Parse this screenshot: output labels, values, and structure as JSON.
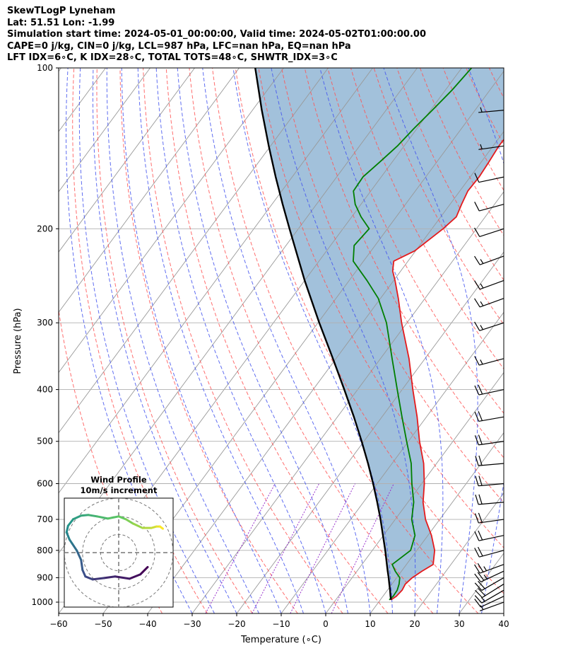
{
  "header": {
    "line1": "SkewTLogP Lyneham",
    "line2": "Lat: 51.51   Lon: -1.99",
    "line3": "Simulation start time: 2024-05-01_00:00:00, Valid time: 2024-05-02T01:00:00.00",
    "line4": "CAPE=0 j/kg, CIN=0 j/kg, LCL=987 hPa, LFC=nan hPa, EQ=nan hPa",
    "line5": "LFT IDX=6∘C, K IDX=28∘C, TOTAL TOTS=48∘C, SHWTR_IDX=3∘C"
  },
  "colors": {
    "temperature": "#e41a1c",
    "dewpoint": "#007f00",
    "parcel": "#000000",
    "cape_fill": "#7ba7cc",
    "dry_adiabat": "#ff5555",
    "moist_adiabat": "#4455ee",
    "mixing_ratio": "#9933cc",
    "isotherm": "#999999",
    "grid": "#b0b0b0"
  },
  "chart_data": [
    {
      "type": "line",
      "subtype": "skew-t-log-p",
      "title": "SkewTLogP Lyneham",
      "xlabel": "Temperature (∘C)",
      "ylabel": "Pressure (hPa)",
      "xlim": [
        -60,
        40
      ],
      "ylim": [
        1050,
        100
      ],
      "x_ticks": [
        "−60",
        "−50",
        "−40",
        "−30",
        "−20",
        "−10",
        "0",
        "10",
        "20",
        "30",
        "40"
      ],
      "x_tick_values": [
        -60,
        -50,
        -40,
        -30,
        -20,
        -10,
        0,
        10,
        20,
        30,
        40
      ],
      "y_ticks": [
        "100",
        "200",
        "300",
        "400",
        "500",
        "600",
        "700",
        "800",
        "900",
        "1000"
      ],
      "y_tick_values": [
        100,
        200,
        300,
        400,
        500,
        600,
        700,
        800,
        900,
        1000
      ],
      "grid": true,
      "series": [
        {
          "name": "Temperature",
          "p": [
            990,
            975,
            950,
            925,
            900,
            875,
            850,
            800,
            750,
            700,
            650,
            600,
            550,
            500,
            450,
            400,
            350,
            300,
            270,
            250,
            240,
            230,
            220,
            200,
            190,
            180,
            170,
            160,
            150,
            140,
            130,
            120,
            110,
            100
          ],
          "t": [
            12.4,
            13.0,
            13.3,
            13.0,
            13.5,
            14.6,
            16.0,
            14.0,
            10.8,
            6.8,
            3.4,
            0.6,
            -2.9,
            -7.5,
            -12.1,
            -17.6,
            -23.6,
            -31.2,
            -36.0,
            -39.7,
            -41.8,
            -43.2,
            -40.2,
            -37.5,
            -36.5,
            -37.4,
            -38.2,
            -38.0,
            -38.3,
            -38.7,
            -38.6,
            -39.1,
            -40.1,
            -41.5
          ]
        },
        {
          "name": "Dewpoint",
          "p": [
            990,
            975,
            950,
            925,
            900,
            875,
            850,
            800,
            750,
            700,
            650,
            600,
            550,
            500,
            450,
            400,
            350,
            300,
            270,
            250,
            230,
            215,
            200,
            190,
            180,
            170,
            160,
            150,
            140,
            130,
            120,
            110,
            100
          ],
          "t": [
            12.0,
            12.3,
            12.2,
            11.6,
            10.7,
            8.6,
            6.8,
            8.6,
            7.1,
            3.7,
            1.3,
            -2.2,
            -5.7,
            -10.4,
            -15.5,
            -21.1,
            -27.4,
            -34.6,
            -40.5,
            -46.0,
            -52.3,
            -54.7,
            -54.1,
            -57.9,
            -61.3,
            -63.9,
            -64.1,
            -62.8,
            -61.5,
            -60.7,
            -59.6,
            -58.5,
            -57.8
          ]
        },
        {
          "name": "Parcel profile",
          "p": [
            990,
            975,
            950,
            925,
            900,
            875,
            850,
            800,
            750,
            700,
            650,
            600,
            550,
            500,
            450,
            400,
            350,
            300,
            250,
            200,
            180,
            160,
            140,
            120,
            100
          ],
          "t": [
            12.4,
            11.7,
            10.6,
            9.4,
            8.2,
            6.9,
            5.6,
            2.9,
            -0.1,
            -3.3,
            -6.9,
            -10.9,
            -15.4,
            -20.5,
            -26.3,
            -33.0,
            -40.7,
            -49.7,
            -60.0,
            -72.0,
            -77.6,
            -83.7,
            -90.4,
            -97.9,
            -106.4
          ]
        }
      ],
      "wind_barbs": {
        "p": [
          1000,
          975,
          950,
          925,
          900,
          875,
          850,
          800,
          750,
          700,
          650,
          600,
          550,
          500,
          450,
          400,
          350,
          300,
          270,
          250,
          225,
          200,
          180,
          160,
          140,
          120
        ],
        "speed_kt": [
          6,
          10,
          14,
          18,
          22,
          24,
          25,
          22,
          22,
          20,
          19,
          19,
          18,
          19,
          20,
          20,
          17,
          17,
          16,
          15,
          13,
          12,
          10,
          9,
          7,
          6
        ],
        "direction_deg": [
          250,
          245,
          240,
          238,
          240,
          245,
          250,
          255,
          258,
          262,
          265,
          265,
          265,
          262,
          260,
          258,
          255,
          252,
          250,
          250,
          250,
          252,
          255,
          258,
          262,
          265
        ]
      }
    },
    {
      "type": "scatter",
      "subtype": "hodograph",
      "title": "Wind Profile",
      "subtitle": "10m/s increment",
      "ring_step_ms": 10,
      "u": [
        4.0,
        3.0,
        1.5,
        -0.5,
        -2.0,
        -3.6,
        -4.6,
        -5.0,
        -5.2,
        -5.8,
        -6.4,
        -6.8,
        -7.2,
        -7.0,
        -6.3,
        -5.2,
        -4.2,
        -3.0,
        -1.5,
        0.0,
        1.0,
        2.0,
        3.3,
        4.5,
        5.2,
        5.7,
        6.1
      ],
      "v": [
        -2.0,
        -3.0,
        -3.6,
        -3.3,
        -3.5,
        -3.7,
        -3.3,
        -2.4,
        -1.0,
        0.3,
        1.2,
        1.8,
        2.8,
        3.7,
        4.6,
        5.1,
        5.2,
        5.0,
        4.7,
        5.0,
        4.6,
        4.0,
        3.4,
        3.4,
        3.6,
        3.6,
        3.3
      ]
    }
  ]
}
